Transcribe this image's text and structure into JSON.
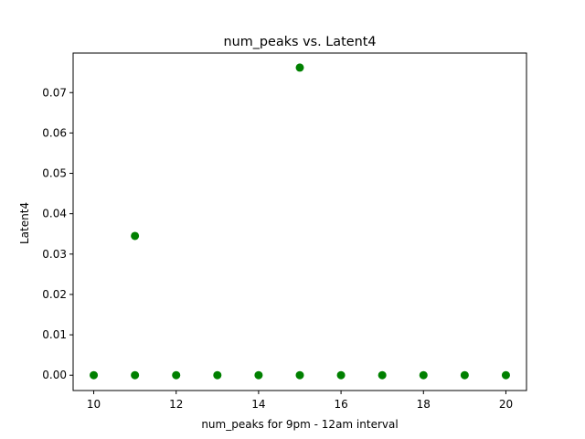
{
  "chart_data": {
    "type": "scatter",
    "title": "num_peaks vs. Latent4",
    "xlabel": "num_peaks for 9pm - 12am interval",
    "ylabel": "Latent4",
    "xlim": [
      9.5,
      20.5
    ],
    "ylim": [
      -0.0038,
      0.0798
    ],
    "xticks": [
      10,
      12,
      14,
      16,
      18,
      20
    ],
    "yticks": [
      0.0,
      0.01,
      0.02,
      0.03,
      0.04,
      0.05,
      0.06,
      0.07
    ],
    "ytick_labels": [
      "0.00",
      "0.01",
      "0.02",
      "0.03",
      "0.04",
      "0.05",
      "0.06",
      "0.07"
    ],
    "grid": false,
    "marker_color": "#008000",
    "points": [
      {
        "x": 10,
        "y": 0.0
      },
      {
        "x": 11,
        "y": 0.0
      },
      {
        "x": 11,
        "y": 0.0345
      },
      {
        "x": 12,
        "y": 0.0
      },
      {
        "x": 13,
        "y": 0.0
      },
      {
        "x": 14,
        "y": 0.0
      },
      {
        "x": 15,
        "y": 0.0
      },
      {
        "x": 15,
        "y": 0.0762
      },
      {
        "x": 16,
        "y": 0.0
      },
      {
        "x": 17,
        "y": 0.0
      },
      {
        "x": 18,
        "y": 0.0
      },
      {
        "x": 19,
        "y": 0.0
      },
      {
        "x": 20,
        "y": 0.0
      }
    ]
  }
}
